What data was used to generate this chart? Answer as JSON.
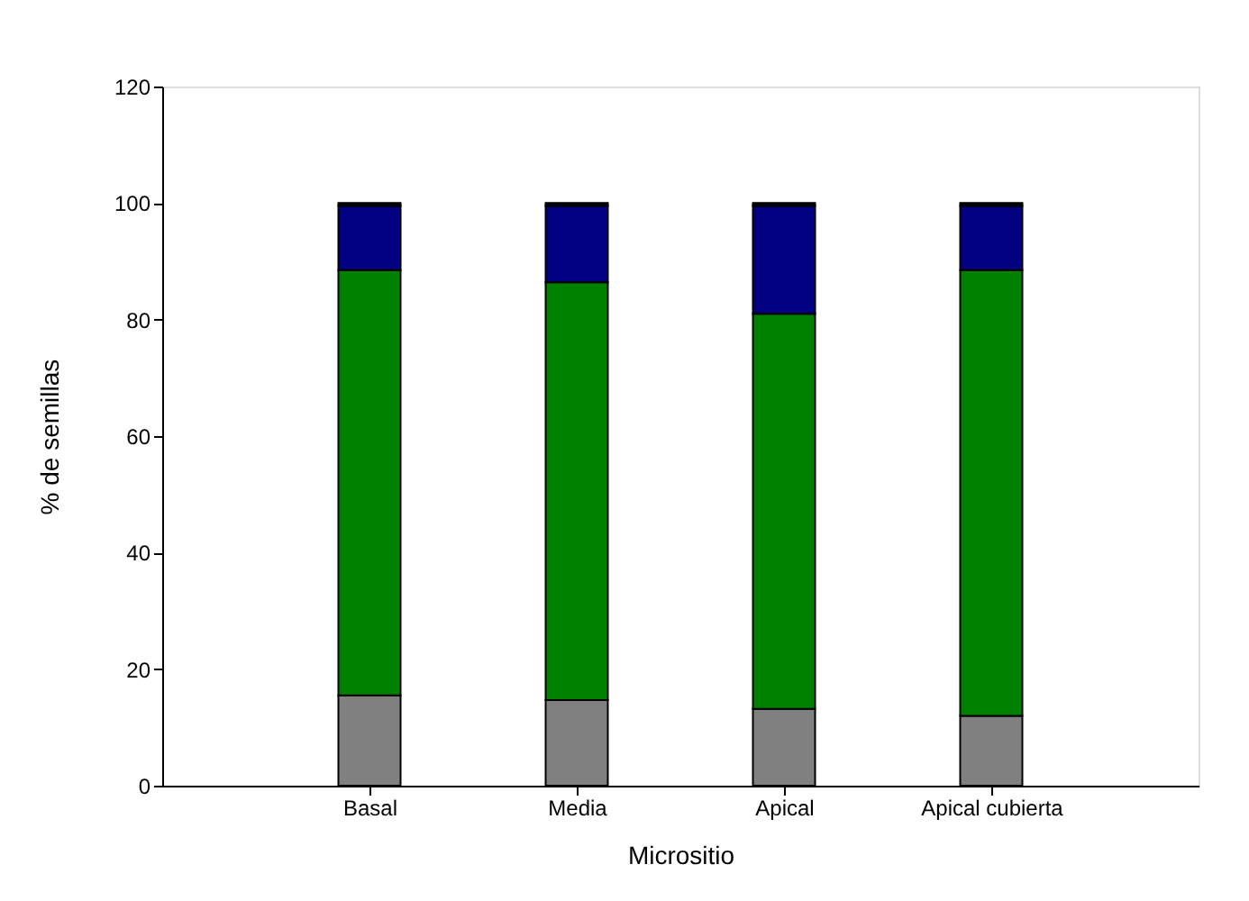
{
  "chart_data": {
    "type": "bar",
    "stacked": true,
    "xlabel": "Micrositio",
    "ylabel": "% de semillas",
    "categories": [
      "Basal",
      "Media",
      "Apical",
      "Apical cubierta"
    ],
    "series": [
      {
        "color": "#808080",
        "values": [
          15.5,
          14.7,
          13.2,
          12.0
        ]
      },
      {
        "color": "#008000",
        "values": [
          73.0,
          71.7,
          67.8,
          76.5
        ]
      },
      {
        "color": "#000080",
        "values": [
          11.0,
          13.1,
          18.5,
          11.0
        ]
      },
      {
        "color": "#000000",
        "values": [
          0.5,
          0.5,
          0.5,
          0.5
        ]
      }
    ],
    "ylim": [
      0,
      120
    ],
    "yticks": [
      0,
      20,
      40,
      60,
      80,
      100,
      120
    ],
    "grid": false,
    "legend": false
  }
}
